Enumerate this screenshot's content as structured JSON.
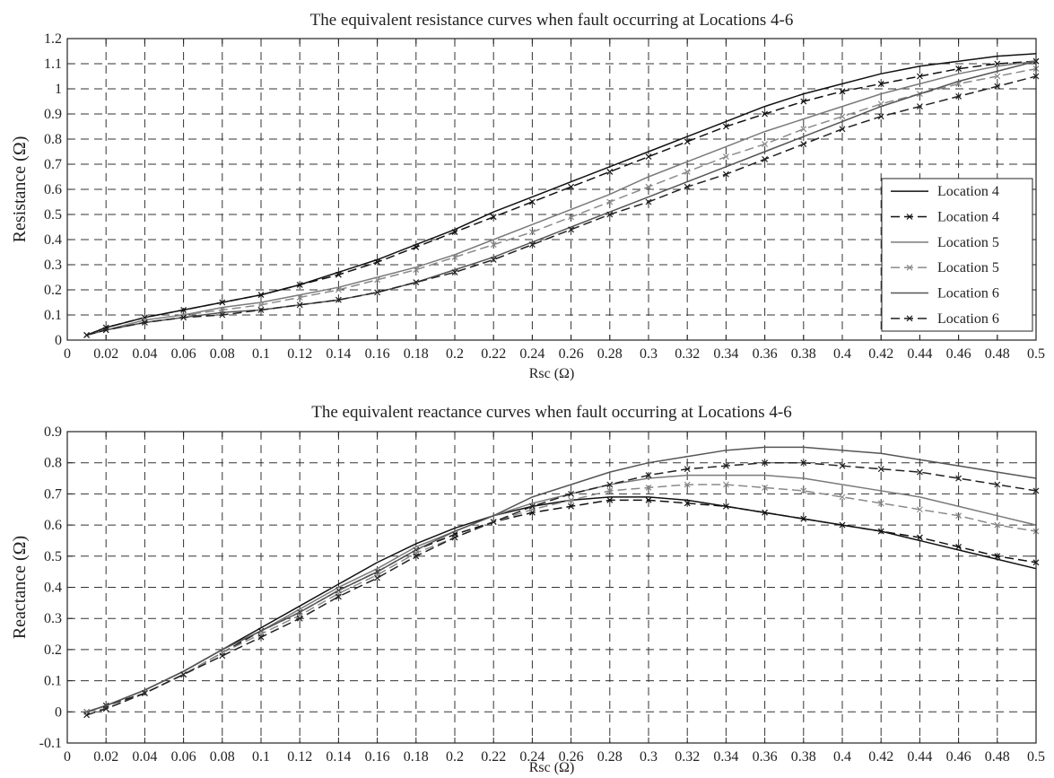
{
  "chart_data": [
    {
      "type": "line",
      "title": "The equivalent resistance curves when fault occurring at Locations 4-6",
      "xlabel": "Rsc (Ω)",
      "ylabel": "Resistance (Ω)",
      "xlim": [
        0,
        0.5
      ],
      "ylim": [
        0,
        1.2
      ],
      "xticks": [
        "0",
        "0.02",
        "0.04",
        "0.06",
        "0.08",
        "0.1",
        "0.12",
        "0.14",
        "0.16",
        "0.18",
        "0.2",
        "0.22",
        "0.24",
        "0.26",
        "0.28",
        "0.3",
        "0.32",
        "0.34",
        "0.36",
        "0.38",
        "0.4",
        "0.42",
        "0.44",
        "0.46",
        "0.48",
        "0.5"
      ],
      "yticks": [
        "0",
        "0.1",
        "0.2",
        "0.3",
        "0.4",
        "0.5",
        "0.6",
        "0.7",
        "0.8",
        "0.9",
        "1",
        "1.1",
        "1.2"
      ],
      "grid": true,
      "legend_position": "right",
      "series": [
        {
          "name": "Location 4",
          "style": "solid",
          "color": "#111111",
          "marker": "none",
          "x": [
            0.01,
            0.02,
            0.04,
            0.06,
            0.08,
            0.1,
            0.12,
            0.14,
            0.16,
            0.18,
            0.2,
            0.22,
            0.24,
            0.26,
            0.28,
            0.3,
            0.32,
            0.34,
            0.36,
            0.38,
            0.4,
            0.42,
            0.44,
            0.46,
            0.48,
            0.5
          ],
          "y": [
            0.02,
            0.05,
            0.09,
            0.12,
            0.15,
            0.18,
            0.22,
            0.27,
            0.32,
            0.38,
            0.44,
            0.51,
            0.57,
            0.63,
            0.69,
            0.75,
            0.81,
            0.87,
            0.93,
            0.98,
            1.02,
            1.06,
            1.09,
            1.11,
            1.13,
            1.14
          ]
        },
        {
          "name": "Location 4",
          "style": "dashed",
          "color": "#111111",
          "marker": "x",
          "x": [
            0.01,
            0.02,
            0.04,
            0.06,
            0.08,
            0.1,
            0.12,
            0.14,
            0.16,
            0.18,
            0.2,
            0.22,
            0.24,
            0.26,
            0.28,
            0.3,
            0.32,
            0.34,
            0.36,
            0.38,
            0.4,
            0.42,
            0.44,
            0.46,
            0.48,
            0.5
          ],
          "y": [
            0.02,
            0.05,
            0.09,
            0.12,
            0.15,
            0.18,
            0.22,
            0.26,
            0.31,
            0.37,
            0.43,
            0.49,
            0.55,
            0.61,
            0.67,
            0.73,
            0.79,
            0.85,
            0.9,
            0.95,
            0.99,
            1.02,
            1.05,
            1.08,
            1.1,
            1.11
          ]
        },
        {
          "name": "Location 5",
          "style": "solid",
          "color": "#7a7a7a",
          "marker": "none",
          "x": [
            0.01,
            0.02,
            0.04,
            0.06,
            0.08,
            0.1,
            0.12,
            0.14,
            0.16,
            0.18,
            0.2,
            0.22,
            0.24,
            0.26,
            0.28,
            0.3,
            0.32,
            0.34,
            0.36,
            0.38,
            0.4,
            0.42,
            0.44,
            0.46,
            0.48,
            0.5
          ],
          "y": [
            0.02,
            0.04,
            0.08,
            0.1,
            0.13,
            0.15,
            0.18,
            0.21,
            0.25,
            0.29,
            0.34,
            0.4,
            0.46,
            0.52,
            0.58,
            0.65,
            0.71,
            0.77,
            0.83,
            0.88,
            0.93,
            0.98,
            1.02,
            1.06,
            1.09,
            1.11
          ]
        },
        {
          "name": "Location 5",
          "style": "dashed",
          "color": "#8a8a8a",
          "marker": "x",
          "x": [
            0.01,
            0.02,
            0.04,
            0.06,
            0.08,
            0.1,
            0.12,
            0.14,
            0.16,
            0.18,
            0.2,
            0.22,
            0.24,
            0.26,
            0.28,
            0.3,
            0.32,
            0.34,
            0.36,
            0.38,
            0.4,
            0.42,
            0.44,
            0.46,
            0.48,
            0.5
          ],
          "y": [
            0.02,
            0.04,
            0.08,
            0.1,
            0.12,
            0.14,
            0.17,
            0.2,
            0.24,
            0.28,
            0.33,
            0.38,
            0.43,
            0.49,
            0.55,
            0.61,
            0.67,
            0.73,
            0.78,
            0.84,
            0.89,
            0.94,
            0.98,
            1.02,
            1.05,
            1.08
          ]
        },
        {
          "name": "Location 6",
          "style": "solid",
          "color": "#555555",
          "marker": "none",
          "x": [
            0.01,
            0.02,
            0.04,
            0.06,
            0.08,
            0.1,
            0.12,
            0.14,
            0.16,
            0.18,
            0.2,
            0.22,
            0.24,
            0.26,
            0.28,
            0.3,
            0.32,
            0.34,
            0.36,
            0.38,
            0.4,
            0.42,
            0.44,
            0.46,
            0.48,
            0.5
          ],
          "y": [
            0.02,
            0.04,
            0.07,
            0.09,
            0.11,
            0.12,
            0.14,
            0.16,
            0.19,
            0.23,
            0.28,
            0.33,
            0.39,
            0.45,
            0.51,
            0.57,
            0.63,
            0.69,
            0.75,
            0.81,
            0.87,
            0.93,
            0.98,
            1.03,
            1.07,
            1.11
          ]
        },
        {
          "name": "Location 6",
          "style": "dashed",
          "color": "#222222",
          "marker": "x",
          "x": [
            0.01,
            0.02,
            0.04,
            0.06,
            0.08,
            0.1,
            0.12,
            0.14,
            0.16,
            0.18,
            0.2,
            0.22,
            0.24,
            0.26,
            0.28,
            0.3,
            0.32,
            0.34,
            0.36,
            0.38,
            0.4,
            0.42,
            0.44,
            0.46,
            0.48,
            0.5
          ],
          "y": [
            0.02,
            0.04,
            0.07,
            0.09,
            0.1,
            0.12,
            0.14,
            0.16,
            0.19,
            0.23,
            0.27,
            0.32,
            0.38,
            0.44,
            0.5,
            0.55,
            0.61,
            0.66,
            0.72,
            0.78,
            0.84,
            0.89,
            0.93,
            0.97,
            1.01,
            1.05
          ]
        }
      ]
    },
    {
      "type": "line",
      "title": "The equivalent reactance curves when fault occurring at Locations 4-6",
      "xlabel": "Rsc (Ω)",
      "ylabel": "Reactance (Ω)",
      "xlim": [
        0,
        0.5
      ],
      "ylim": [
        -0.1,
        0.9
      ],
      "xticks": [
        "0",
        "0.02",
        "0.04",
        "0.06",
        "0.08",
        "0.1",
        "0.12",
        "0.14",
        "0.16",
        "0.18",
        "0.2",
        "0.22",
        "0.24",
        "0.26",
        "0.28",
        "0.3",
        "0.32",
        "0.34",
        "0.36",
        "0.38",
        "0.4",
        "0.42",
        "0.44",
        "0.46",
        "0.48",
        "0.5"
      ],
      "yticks": [
        "-0.1",
        "0",
        "0.1",
        "0.2",
        "0.3",
        "0.4",
        "0.5",
        "0.6",
        "0.7",
        "0.8",
        "0.9"
      ],
      "grid": true,
      "series": [
        {
          "name": "Location 4",
          "style": "solid",
          "color": "#111111",
          "marker": "none",
          "x": [
            0.01,
            0.02,
            0.04,
            0.06,
            0.08,
            0.1,
            0.12,
            0.14,
            0.16,
            0.18,
            0.2,
            0.22,
            0.24,
            0.26,
            0.28,
            0.3,
            0.32,
            0.34,
            0.36,
            0.38,
            0.4,
            0.42,
            0.44,
            0.46,
            0.48,
            0.5
          ],
          "y": [
            0,
            0.02,
            0.07,
            0.13,
            0.2,
            0.27,
            0.34,
            0.41,
            0.48,
            0.54,
            0.59,
            0.63,
            0.66,
            0.68,
            0.69,
            0.69,
            0.68,
            0.66,
            0.64,
            0.62,
            0.6,
            0.58,
            0.55,
            0.52,
            0.49,
            0.46
          ]
        },
        {
          "name": "Location 4",
          "style": "dashed",
          "color": "#111111",
          "marker": "x",
          "x": [
            0.01,
            0.02,
            0.04,
            0.06,
            0.08,
            0.1,
            0.12,
            0.14,
            0.16,
            0.18,
            0.2,
            0.22,
            0.24,
            0.26,
            0.28,
            0.3,
            0.32,
            0.34,
            0.36,
            0.38,
            0.4,
            0.42,
            0.44,
            0.46,
            0.48,
            0.5
          ],
          "y": [
            0,
            0.02,
            0.06,
            0.12,
            0.19,
            0.26,
            0.32,
            0.39,
            0.45,
            0.52,
            0.57,
            0.61,
            0.64,
            0.66,
            0.68,
            0.68,
            0.67,
            0.66,
            0.64,
            0.62,
            0.6,
            0.58,
            0.56,
            0.53,
            0.5,
            0.48
          ]
        },
        {
          "name": "Location 5",
          "style": "solid",
          "color": "#7a7a7a",
          "marker": "none",
          "x": [
            0.01,
            0.02,
            0.04,
            0.06,
            0.08,
            0.1,
            0.12,
            0.14,
            0.16,
            0.18,
            0.2,
            0.22,
            0.24,
            0.26,
            0.28,
            0.3,
            0.32,
            0.34,
            0.36,
            0.38,
            0.4,
            0.42,
            0.44,
            0.46,
            0.48,
            0.5
          ],
          "y": [
            0,
            0.02,
            0.07,
            0.13,
            0.2,
            0.26,
            0.33,
            0.4,
            0.46,
            0.53,
            0.58,
            0.63,
            0.67,
            0.7,
            0.73,
            0.75,
            0.76,
            0.76,
            0.76,
            0.75,
            0.73,
            0.71,
            0.69,
            0.66,
            0.63,
            0.6
          ]
        },
        {
          "name": "Location 5",
          "style": "dashed",
          "color": "#8a8a8a",
          "marker": "x",
          "x": [
            0.01,
            0.02,
            0.04,
            0.06,
            0.08,
            0.1,
            0.12,
            0.14,
            0.16,
            0.18,
            0.2,
            0.22,
            0.24,
            0.26,
            0.28,
            0.3,
            0.32,
            0.34,
            0.36,
            0.38,
            0.4,
            0.42,
            0.44,
            0.46,
            0.48,
            0.5
          ],
          "y": [
            0,
            0.01,
            0.06,
            0.12,
            0.19,
            0.25,
            0.31,
            0.38,
            0.44,
            0.51,
            0.56,
            0.61,
            0.65,
            0.68,
            0.71,
            0.72,
            0.73,
            0.73,
            0.72,
            0.71,
            0.69,
            0.67,
            0.65,
            0.63,
            0.6,
            0.58
          ]
        },
        {
          "name": "Location 6",
          "style": "solid",
          "color": "#555555",
          "marker": "none",
          "x": [
            0.01,
            0.02,
            0.04,
            0.06,
            0.08,
            0.1,
            0.12,
            0.14,
            0.16,
            0.18,
            0.2,
            0.22,
            0.24,
            0.26,
            0.28,
            0.3,
            0.32,
            0.34,
            0.36,
            0.38,
            0.4,
            0.42,
            0.44,
            0.46,
            0.48,
            0.5
          ],
          "y": [
            0,
            0.02,
            0.07,
            0.13,
            0.2,
            0.26,
            0.32,
            0.39,
            0.45,
            0.52,
            0.58,
            0.63,
            0.69,
            0.73,
            0.77,
            0.8,
            0.82,
            0.84,
            0.85,
            0.85,
            0.84,
            0.83,
            0.81,
            0.79,
            0.77,
            0.75
          ]
        },
        {
          "name": "Location 6",
          "style": "dashed",
          "color": "#222222",
          "marker": "x",
          "x": [
            0.01,
            0.02,
            0.04,
            0.06,
            0.08,
            0.1,
            0.12,
            0.14,
            0.16,
            0.18,
            0.2,
            0.22,
            0.24,
            0.26,
            0.28,
            0.3,
            0.32,
            0.34,
            0.36,
            0.38,
            0.4,
            0.42,
            0.44,
            0.46,
            0.48,
            0.5
          ],
          "y": [
            -0.01,
            0.01,
            0.06,
            0.12,
            0.18,
            0.24,
            0.3,
            0.37,
            0.43,
            0.5,
            0.56,
            0.61,
            0.66,
            0.7,
            0.73,
            0.76,
            0.78,
            0.79,
            0.8,
            0.8,
            0.79,
            0.78,
            0.77,
            0.75,
            0.73,
            0.71
          ]
        }
      ]
    }
  ]
}
